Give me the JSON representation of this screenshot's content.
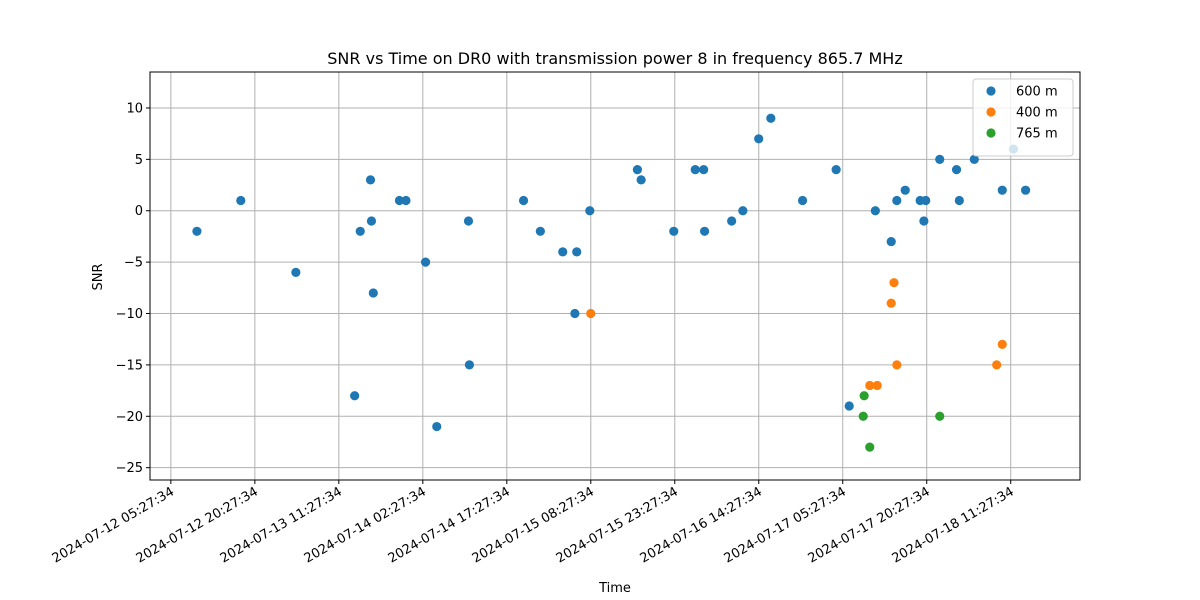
{
  "chart_data": {
    "type": "scatter",
    "title": "SNR vs Time on DR0 with transmission power 8 in frequency 865.7 MHz",
    "xlabel": "Time",
    "ylabel": "SNR",
    "xlim": [
      "2024-07-12 01:44",
      "2024-07-18 23:50"
    ],
    "ylim": [
      -26.2,
      13.5
    ],
    "x_ticks": [
      "2024-07-12 05:27:34",
      "2024-07-12 20:27:34",
      "2024-07-13 11:27:34",
      "2024-07-14 02:27:34",
      "2024-07-14 17:27:34",
      "2024-07-15 08:27:34",
      "2024-07-15 23:27:34",
      "2024-07-16 14:27:34",
      "2024-07-17 05:27:34",
      "2024-07-17 20:27:34",
      "2024-07-18 11:27:34"
    ],
    "y_ticks": [
      10,
      5,
      0,
      -5,
      -10,
      -15,
      -20,
      -25
    ],
    "grid": true,
    "legend_position": "top-right",
    "series": [
      {
        "name": "600 m",
        "color": "#1f77b4",
        "points": [
          {
            "x": "2024-07-12 10:07",
            "y": -2
          },
          {
            "x": "2024-07-12 17:57",
            "y": 1
          },
          {
            "x": "2024-07-13 03:47",
            "y": -6
          },
          {
            "x": "2024-07-13 14:17",
            "y": -18
          },
          {
            "x": "2024-07-13 15:17",
            "y": -2
          },
          {
            "x": "2024-07-13 17:07",
            "y": 3
          },
          {
            "x": "2024-07-13 17:17",
            "y": -1
          },
          {
            "x": "2024-07-13 17:37",
            "y": -8
          },
          {
            "x": "2024-07-13 22:17",
            "y": 1
          },
          {
            "x": "2024-07-13 23:27",
            "y": 1
          },
          {
            "x": "2024-07-14 02:57",
            "y": -5
          },
          {
            "x": "2024-07-14 04:57",
            "y": -21
          },
          {
            "x": "2024-07-14 10:37",
            "y": -1
          },
          {
            "x": "2024-07-14 10:47",
            "y": -15
          },
          {
            "x": "2024-07-14 20:27",
            "y": 1
          },
          {
            "x": "2024-07-14 23:27",
            "y": -2
          },
          {
            "x": "2024-07-15 03:27",
            "y": -4
          },
          {
            "x": "2024-07-15 05:37",
            "y": -10
          },
          {
            "x": "2024-07-15 05:57",
            "y": -4
          },
          {
            "x": "2024-07-15 08:17",
            "y": 0
          },
          {
            "x": "2024-07-15 16:47",
            "y": 4
          },
          {
            "x": "2024-07-15 17:27",
            "y": 3
          },
          {
            "x": "2024-07-15 23:17",
            "y": -2
          },
          {
            "x": "2024-07-16 03:07",
            "y": 4
          },
          {
            "x": "2024-07-16 04:37",
            "y": 4
          },
          {
            "x": "2024-07-16 04:47",
            "y": -2
          },
          {
            "x": "2024-07-16 09:37",
            "y": -1
          },
          {
            "x": "2024-07-16 11:37",
            "y": 0
          },
          {
            "x": "2024-07-16 14:27",
            "y": 7
          },
          {
            "x": "2024-07-16 16:37",
            "y": 9
          },
          {
            "x": "2024-07-16 22:17",
            "y": 1
          },
          {
            "x": "2024-07-17 04:17",
            "y": 4
          },
          {
            "x": "2024-07-17 06:37",
            "y": -19
          },
          {
            "x": "2024-07-17 11:17",
            "y": 0
          },
          {
            "x": "2024-07-17 14:07",
            "y": -3
          },
          {
            "x": "2024-07-17 15:07",
            "y": 1
          },
          {
            "x": "2024-07-17 16:37",
            "y": 2
          },
          {
            "x": "2024-07-17 19:17",
            "y": 1
          },
          {
            "x": "2024-07-17 19:57",
            "y": -1
          },
          {
            "x": "2024-07-17 20:17",
            "y": 1
          },
          {
            "x": "2024-07-17 22:47",
            "y": 5
          },
          {
            "x": "2024-07-18 01:47",
            "y": 4
          },
          {
            "x": "2024-07-18 02:17",
            "y": 1
          },
          {
            "x": "2024-07-18 04:57",
            "y": 5
          },
          {
            "x": "2024-07-18 09:57",
            "y": 2
          },
          {
            "x": "2024-07-18 11:57",
            "y": 6
          },
          {
            "x": "2024-07-18 14:07",
            "y": 2
          }
        ]
      },
      {
        "name": "400 m",
        "color": "#ff7f0e",
        "points": [
          {
            "x": "2024-07-15 08:27",
            "y": -10
          },
          {
            "x": "2024-07-17 10:17",
            "y": -17
          },
          {
            "x": "2024-07-17 11:37",
            "y": -17
          },
          {
            "x": "2024-07-17 14:07",
            "y": -9
          },
          {
            "x": "2024-07-17 14:37",
            "y": -7
          },
          {
            "x": "2024-07-17 15:07",
            "y": -15
          },
          {
            "x": "2024-07-18 08:57",
            "y": -15
          },
          {
            "x": "2024-07-18 09:57",
            "y": -13
          }
        ]
      },
      {
        "name": "765 m",
        "color": "#2ca02c",
        "points": [
          {
            "x": "2024-07-17 09:07",
            "y": -20
          },
          {
            "x": "2024-07-17 09:17",
            "y": -18
          },
          {
            "x": "2024-07-17 10:17",
            "y": -23
          },
          {
            "x": "2024-07-17 22:47",
            "y": -20
          }
        ]
      }
    ]
  }
}
